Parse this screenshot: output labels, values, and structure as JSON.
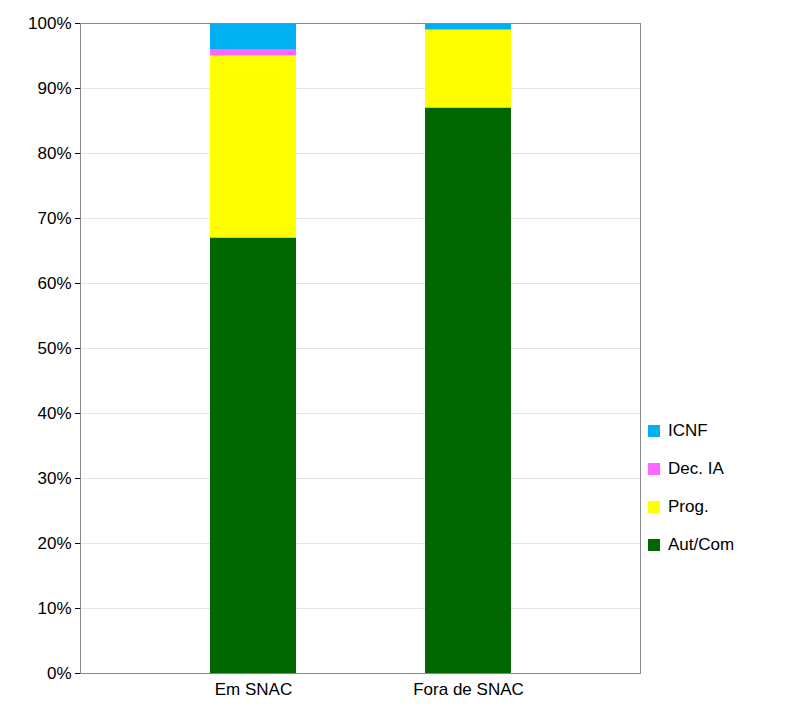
{
  "chart_data": {
    "type": "bar",
    "stacked": true,
    "categories": [
      "Em SNAC",
      "Fora de SNAC"
    ],
    "series": [
      {
        "name": "Aut/Com",
        "color": "#006600",
        "values": [
          67,
          87
        ]
      },
      {
        "name": "Prog.",
        "color": "#ffff00",
        "values": [
          28,
          12
        ]
      },
      {
        "name": "Dec. IA",
        "color": "#ff66ff",
        "values": [
          1,
          0
        ]
      },
      {
        "name": "ICNF",
        "color": "#00b0f0",
        "values": [
          4,
          1
        ]
      }
    ],
    "ylim": [
      0,
      100
    ],
    "yticks": [
      {
        "value": 0,
        "label": "0%"
      },
      {
        "value": 10,
        "label": "10%"
      },
      {
        "value": 20,
        "label": "20%"
      },
      {
        "value": 30,
        "label": "30%"
      },
      {
        "value": 40,
        "label": "40%"
      },
      {
        "value": 50,
        "label": "50%"
      },
      {
        "value": 60,
        "label": "60%"
      },
      {
        "value": 70,
        "label": "70%"
      },
      {
        "value": 80,
        "label": "80%"
      },
      {
        "value": 90,
        "label": "90%"
      },
      {
        "value": 100,
        "label": "100%"
      }
    ],
    "grid": true,
    "legend": "right"
  }
}
